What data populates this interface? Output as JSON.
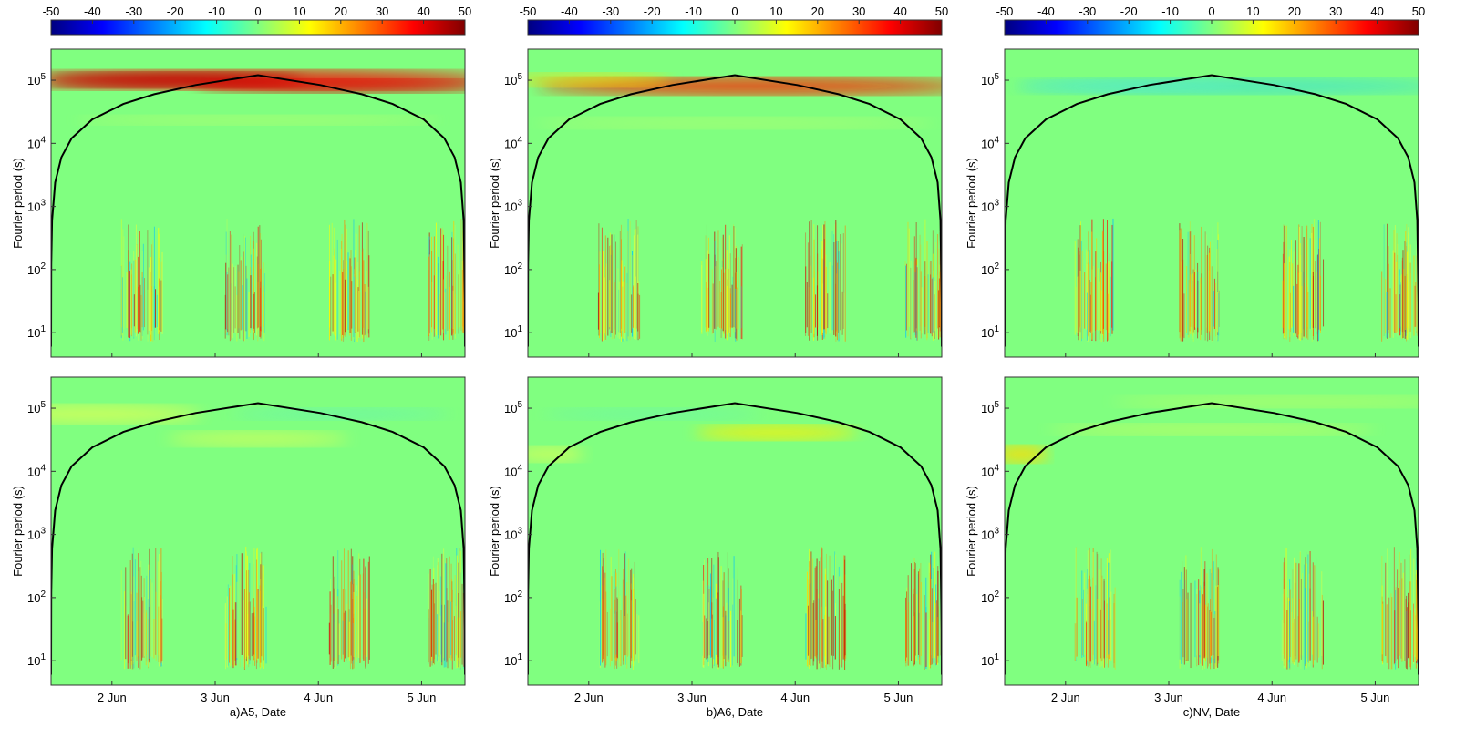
{
  "chart_data": [
    {
      "type": "heatmap",
      "panel": "top",
      "ylabel": "Fourier period (s)",
      "xlim": [
        1.41,
        5.42
      ],
      "ylim": [
        4.1,
        310000
      ],
      "log_y": true,
      "colormap": "jet",
      "clim": [
        -50,
        50
      ],
      "colorbar_ticks": [
        -50,
        -40,
        -30,
        -20,
        -10,
        0,
        10,
        20,
        30,
        40,
        50
      ],
      "xticks": [
        2,
        3,
        4,
        5
      ],
      "yticks": [
        {
          "value": 10,
          "label": "10^1"
        },
        {
          "value": 100,
          "label": "10^2"
        },
        {
          "value": 1000,
          "label": "10^3"
        },
        {
          "value": 10000,
          "label": "10^4"
        },
        {
          "value": 100000,
          "label": "10^5"
        }
      ],
      "cone": {
        "color": "#000000",
        "x": [
          1.4101,
          1.4105,
          1.412,
          1.42,
          1.45,
          1.51,
          1.61,
          1.81,
          2.11,
          2.41,
          2.81,
          3.415,
          4.02,
          4.42,
          4.72,
          5.02,
          5.22,
          5.32,
          5.38,
          5.408,
          5.4195,
          5.4199
        ],
        "values": [
          6,
          30,
          120,
          600,
          2400,
          6000,
          12000,
          24000,
          42000,
          60000,
          84000,
          120300,
          84000,
          60000,
          42000,
          24000,
          12000,
          6000,
          2400,
          600,
          30,
          6
        ]
      }
    },
    {
      "type": "heatmap",
      "panel": "top",
      "ylabel": "Fourier period (s)",
      "xlim": [
        1.41,
        5.42
      ],
      "ylim": [
        4.1,
        310000
      ],
      "log_y": true,
      "colormap": "jet",
      "clim": [
        -50,
        50
      ],
      "colorbar_ticks": [
        -50,
        -40,
        -30,
        -20,
        -10,
        0,
        10,
        20,
        30,
        40,
        50
      ],
      "xticks": [
        2,
        3,
        4,
        5
      ],
      "yticks": [
        {
          "value": 10,
          "label": "10^1"
        },
        {
          "value": 100,
          "label": "10^2"
        },
        {
          "value": 1000,
          "label": "10^3"
        },
        {
          "value": 10000,
          "label": "10^4"
        },
        {
          "value": 100000,
          "label": "10^5"
        }
      ],
      "cone": {
        "color": "#000000",
        "x": [
          1.4101,
          1.4105,
          1.412,
          1.42,
          1.45,
          1.51,
          1.61,
          1.81,
          2.11,
          2.41,
          2.81,
          3.415,
          4.02,
          4.42,
          4.72,
          5.02,
          5.22,
          5.32,
          5.38,
          5.408,
          5.4195,
          5.4199
        ],
        "values": [
          6,
          30,
          120,
          600,
          2400,
          6000,
          12000,
          24000,
          42000,
          60000,
          84000,
          120300,
          84000,
          60000,
          42000,
          24000,
          12000,
          6000,
          2400,
          600,
          30,
          6
        ]
      }
    },
    {
      "type": "heatmap",
      "panel": "top",
      "ylabel": "Fourier period (s)",
      "xlim": [
        1.41,
        5.42
      ],
      "ylim": [
        4.1,
        310000
      ],
      "log_y": true,
      "colormap": "jet",
      "clim": [
        -50,
        50
      ],
      "colorbar_ticks": [
        -50,
        -40,
        -30,
        -20,
        -10,
        0,
        10,
        20,
        30,
        40,
        50
      ],
      "xticks": [
        2,
        3,
        4,
        5
      ],
      "yticks": [
        {
          "value": 10,
          "label": "10^1"
        },
        {
          "value": 100,
          "label": "10^2"
        },
        {
          "value": 1000,
          "label": "10^3"
        },
        {
          "value": 10000,
          "label": "10^4"
        },
        {
          "value": 100000,
          "label": "10^5"
        }
      ],
      "cone": {
        "color": "#000000",
        "x": [
          1.4101,
          1.4105,
          1.412,
          1.42,
          1.45,
          1.51,
          1.61,
          1.81,
          2.11,
          2.41,
          2.81,
          3.415,
          4.02,
          4.42,
          4.72,
          5.02,
          5.22,
          5.32,
          5.38,
          5.408,
          5.4195,
          5.4199
        ],
        "values": [
          6,
          30,
          120,
          600,
          2400,
          6000,
          12000,
          24000,
          42000,
          60000,
          84000,
          120300,
          84000,
          60000,
          42000,
          24000,
          12000,
          6000,
          2400,
          600,
          30,
          6
        ]
      }
    },
    {
      "type": "heatmap",
      "panel": "bottom",
      "ylabel": "Fourier period (s)",
      "xlabel": "a)A5,  Date",
      "xlim": [
        1.41,
        5.42
      ],
      "ylim": [
        4.1,
        310000
      ],
      "log_y": true,
      "colormap": "jet",
      "clim": [
        -50,
        50
      ],
      "xticks": [
        {
          "value": 2,
          "label": "2 Jun"
        },
        {
          "value": 3,
          "label": "3 Jun"
        },
        {
          "value": 4,
          "label": "4 Jun"
        },
        {
          "value": 5,
          "label": "5 Jun"
        }
      ],
      "yticks": [
        {
          "value": 10,
          "label": "10^1"
        },
        {
          "value": 100,
          "label": "10^2"
        },
        {
          "value": 1000,
          "label": "10^3"
        },
        {
          "value": 10000,
          "label": "10^4"
        },
        {
          "value": 100000,
          "label": "10^5"
        }
      ],
      "cone": {
        "color": "#000000",
        "x": [
          1.4101,
          1.4105,
          1.412,
          1.42,
          1.45,
          1.51,
          1.61,
          1.81,
          2.11,
          2.41,
          2.81,
          3.415,
          4.02,
          4.42,
          4.72,
          5.02,
          5.22,
          5.32,
          5.38,
          5.408,
          5.4195,
          5.4199
        ],
        "values": [
          6,
          30,
          120,
          600,
          2400,
          6000,
          12000,
          24000,
          42000,
          60000,
          84000,
          120300,
          84000,
          60000,
          42000,
          24000,
          12000,
          6000,
          2400,
          600,
          30,
          6
        ]
      }
    },
    {
      "type": "heatmap",
      "panel": "bottom",
      "ylabel": "Fourier period (s)",
      "xlabel": "b)A6,  Date",
      "xlim": [
        1.41,
        5.42
      ],
      "ylim": [
        4.1,
        310000
      ],
      "log_y": true,
      "colormap": "jet",
      "clim": [
        -50,
        50
      ],
      "xticks": [
        {
          "value": 2,
          "label": "2 Jun"
        },
        {
          "value": 3,
          "label": "3 Jun"
        },
        {
          "value": 4,
          "label": "4 Jun"
        },
        {
          "value": 5,
          "label": "5 Jun"
        }
      ],
      "yticks": [
        {
          "value": 10,
          "label": "10^1"
        },
        {
          "value": 100,
          "label": "10^2"
        },
        {
          "value": 1000,
          "label": "10^3"
        },
        {
          "value": 10000,
          "label": "10^4"
        },
        {
          "value": 100000,
          "label": "10^5"
        }
      ],
      "cone": {
        "color": "#000000",
        "x": [
          1.4101,
          1.4105,
          1.412,
          1.42,
          1.45,
          1.51,
          1.61,
          1.81,
          2.11,
          2.41,
          2.81,
          3.415,
          4.02,
          4.42,
          4.72,
          5.02,
          5.22,
          5.32,
          5.38,
          5.408,
          5.4195,
          5.4199
        ],
        "values": [
          6,
          30,
          120,
          600,
          2400,
          6000,
          12000,
          24000,
          42000,
          60000,
          84000,
          120300,
          84000,
          60000,
          42000,
          24000,
          12000,
          6000,
          2400,
          600,
          30,
          6
        ]
      }
    },
    {
      "type": "heatmap",
      "panel": "bottom",
      "ylabel": "Fourier period (s)",
      "xlabel": "c)NV,  Date",
      "xlim": [
        1.41,
        5.42
      ],
      "ylim": [
        4.1,
        310000
      ],
      "log_y": true,
      "colormap": "jet",
      "clim": [
        -50,
        50
      ],
      "xticks": [
        {
          "value": 2,
          "label": "2 Jun"
        },
        {
          "value": 3,
          "label": "3 Jun"
        },
        {
          "value": 4,
          "label": "4 Jun"
        },
        {
          "value": 5,
          "label": "5 Jun"
        }
      ],
      "yticks": [
        {
          "value": 10,
          "label": "10^1"
        },
        {
          "value": 100,
          "label": "10^2"
        },
        {
          "value": 1000,
          "label": "10^3"
        },
        {
          "value": 10000,
          "label": "10^4"
        },
        {
          "value": 100000,
          "label": "10^5"
        }
      ],
      "cone": {
        "color": "#000000",
        "x": [
          1.4101,
          1.4105,
          1.412,
          1.42,
          1.45,
          1.51,
          1.61,
          1.81,
          2.11,
          2.41,
          2.81,
          3.415,
          4.02,
          4.42,
          4.72,
          5.02,
          5.22,
          5.32,
          5.38,
          5.408,
          5.4195,
          5.4199
        ],
        "values": [
          6,
          30,
          120,
          600,
          2400,
          6000,
          12000,
          24000,
          42000,
          60000,
          84000,
          120300,
          84000,
          60000,
          42000,
          24000,
          12000,
          6000,
          2400,
          600,
          30,
          6
        ]
      }
    }
  ]
}
